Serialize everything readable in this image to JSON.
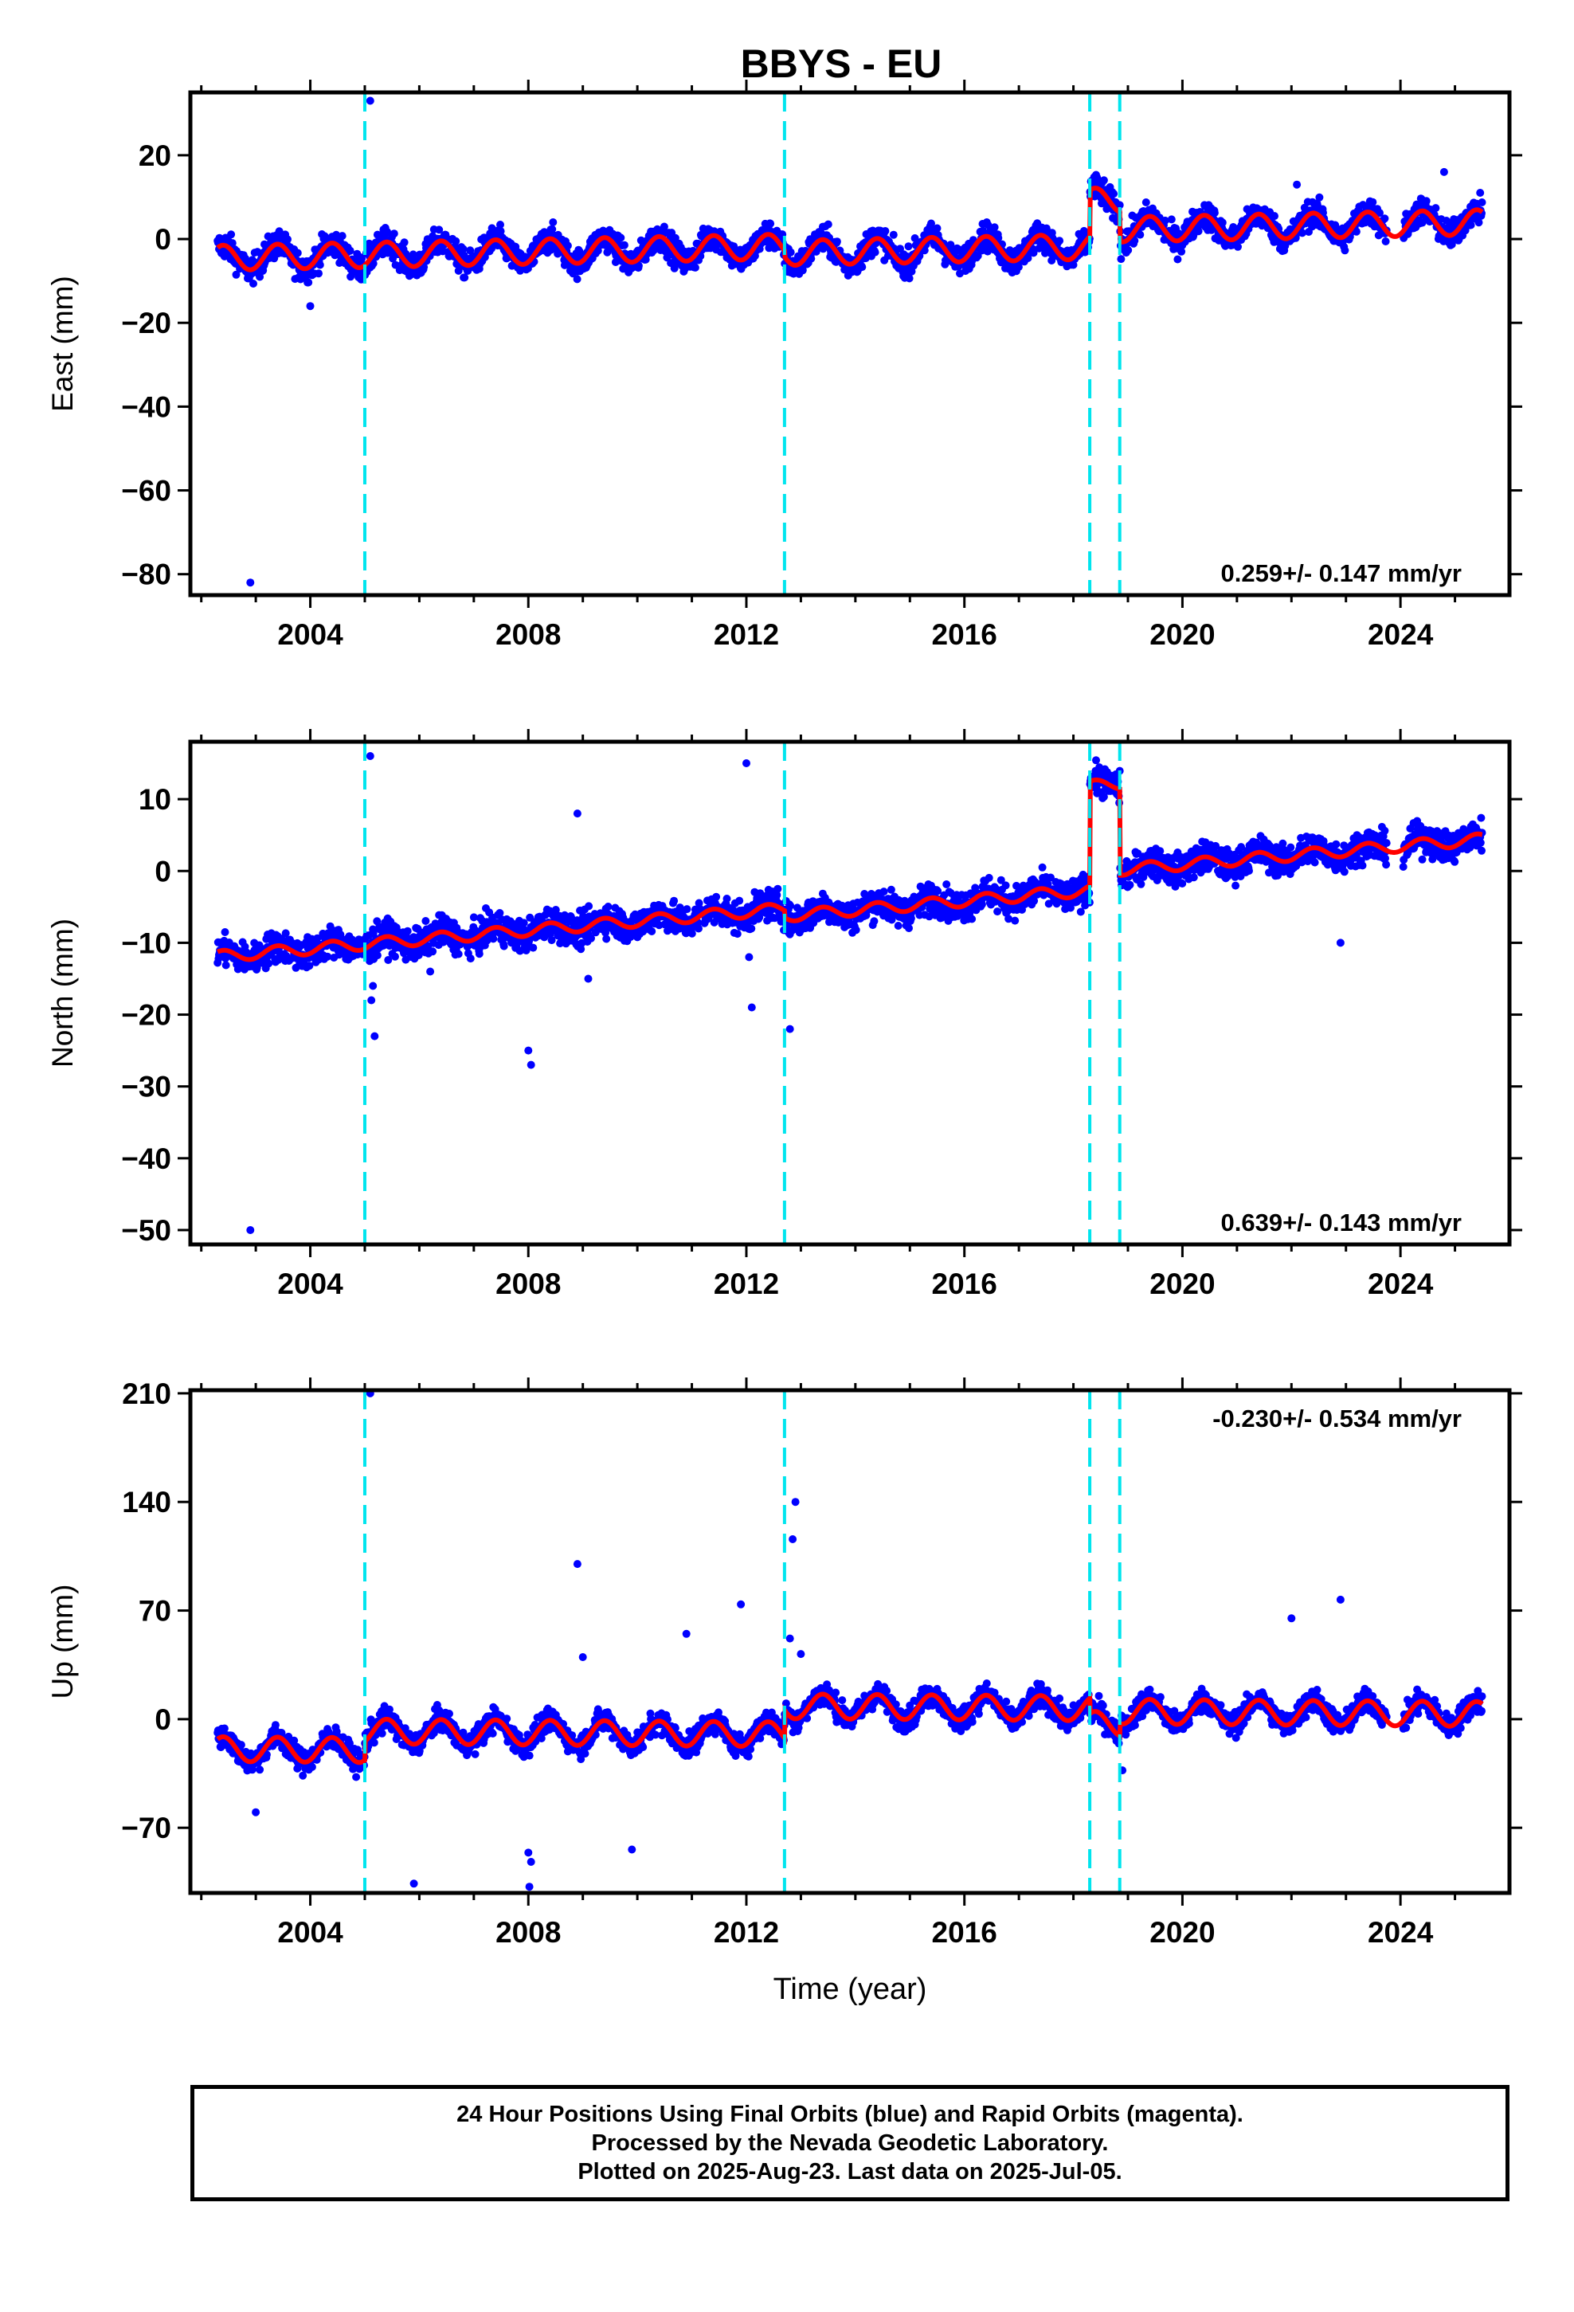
{
  "title": "BBYS - EU",
  "colors": {
    "points": "#0000ff",
    "model": "#ff0000",
    "breaks": "#00e5ee",
    "axis": "#000000"
  },
  "chart_data": [
    {
      "type": "scatter",
      "component": "East",
      "ylabel": "East (mm)",
      "xlabel": "",
      "xlim": [
        2001.8,
        2026.0
      ],
      "ylim": [
        -85,
        35
      ],
      "yticks": [
        20,
        0,
        -20,
        -40,
        -60,
        -80
      ],
      "xticks": [
        2004,
        2008,
        2012,
        2016,
        2020,
        2024
      ],
      "velocity_label": "0.259+/- 0.147 mm/yr",
      "velocity_position": "bottom-right",
      "break_years": [
        2005.0,
        2012.7,
        2018.3,
        2018.85
      ],
      "data_range": [
        2002.3,
        2025.5
      ],
      "offsets": [
        {
          "start": 2002.3,
          "end": 2012.7,
          "level": -1.5
        },
        {
          "start": 2012.7,
          "end": 2018.3,
          "level": -3.0
        },
        {
          "start": 2018.3,
          "end": 2018.85,
          "level": 8.0
        },
        {
          "start": 2018.85,
          "end": 2025.5,
          "level": 1.0
        }
      ],
      "seasonal_amplitude": 3.0,
      "trend_per_year": 0.259,
      "scatter_spread": 3.0,
      "outliers": [
        [
          2002.9,
          -82
        ],
        [
          2005.1,
          33
        ],
        [
          2004.0,
          -16
        ],
        [
          2022.1,
          13
        ],
        [
          2024.8,
          16
        ]
      ]
    },
    {
      "type": "scatter",
      "component": "North",
      "ylabel": "North (mm)",
      "xlabel": "",
      "xlim": [
        2001.8,
        2026.0
      ],
      "ylim": [
        -52,
        18
      ],
      "yticks": [
        10,
        0,
        -10,
        -20,
        -30,
        -40,
        -50
      ],
      "xticks": [
        2004,
        2008,
        2012,
        2016,
        2020,
        2024
      ],
      "velocity_label": "0.639+/- 0.143 mm/yr",
      "velocity_position": "bottom-right",
      "break_years": [
        2005.0,
        2012.7,
        2018.3,
        2018.85
      ],
      "data_range": [
        2002.3,
        2025.5
      ],
      "offsets": [
        {
          "start": 2002.3,
          "end": 2012.7,
          "level": -4.5
        },
        {
          "start": 2012.7,
          "end": 2018.3,
          "level": -5.5
        },
        {
          "start": 2018.3,
          "end": 2018.85,
          "level": 9.0
        },
        {
          "start": 2018.85,
          "end": 2025.5,
          "level": -3.0
        }
      ],
      "seasonal_amplitude": 0.8,
      "trend_per_year": 0.639,
      "scatter_spread": 2.0,
      "outliers": [
        [
          2002.9,
          -50
        ],
        [
          2005.1,
          16
        ],
        [
          2005.15,
          -16
        ],
        [
          2005.12,
          -18
        ],
        [
          2005.18,
          -23
        ],
        [
          2008.0,
          -25
        ],
        [
          2008.05,
          -27
        ],
        [
          2012.0,
          15
        ],
        [
          2012.1,
          -19
        ],
        [
          2012.8,
          -22
        ],
        [
          2022.9,
          -10
        ],
        [
          2012.05,
          -12
        ],
        [
          2006.2,
          -14
        ],
        [
          2009.1,
          -15
        ],
        [
          2008.9,
          8
        ]
      ]
    },
    {
      "type": "scatter",
      "component": "Up",
      "ylabel": "Up (mm)",
      "xlabel": "Time (year)",
      "xlim": [
        2001.8,
        2026.0
      ],
      "ylim": [
        -112,
        212
      ],
      "yticks": [
        210,
        140,
        70,
        0,
        -70
      ],
      "xticks": [
        2004,
        2008,
        2012,
        2016,
        2020,
        2024
      ],
      "velocity_label": "-0.230+/- 0.534 mm/yr",
      "velocity_position": "top-right",
      "break_years": [
        2005.0,
        2012.7,
        2018.3,
        2018.85
      ],
      "data_range": [
        2002.3,
        2025.5
      ],
      "offsets": [
        {
          "start": 2002.3,
          "end": 2005.0,
          "level": -22
        },
        {
          "start": 2005.0,
          "end": 2012.7,
          "level": -10
        },
        {
          "start": 2012.7,
          "end": 2018.3,
          "level": 8
        },
        {
          "start": 2018.3,
          "end": 2018.85,
          "level": -2
        },
        {
          "start": 2018.85,
          "end": 2025.5,
          "level": 6
        }
      ],
      "seasonal_amplitude": 8,
      "trend_per_year": -0.23,
      "scatter_spread": 7,
      "outliers": [
        [
          2005.1,
          210
        ],
        [
          2012.9,
          140
        ],
        [
          2012.85,
          116
        ],
        [
          2012.8,
          52
        ],
        [
          2013.0,
          42
        ],
        [
          2008.9,
          100
        ],
        [
          2009.0,
          40
        ],
        [
          2010.9,
          55
        ],
        [
          2011.9,
          74
        ],
        [
          2022.0,
          65
        ],
        [
          2022.9,
          77
        ],
        [
          2008.0,
          -86
        ],
        [
          2008.05,
          -92
        ],
        [
          2008.02,
          -108
        ],
        [
          2005.9,
          -106
        ],
        [
          2009.9,
          -84
        ],
        [
          2018.9,
          -33
        ],
        [
          2003.0,
          -60
        ]
      ]
    }
  ],
  "caption": {
    "line1": "24 Hour Positions Using Final Orbits (blue) and Rapid Orbits (magenta).",
    "line2": "Processed by the Nevada Geodetic Laboratory.",
    "line3": "Plotted on 2025-Aug-23. Last data on 2025-Jul-05."
  }
}
